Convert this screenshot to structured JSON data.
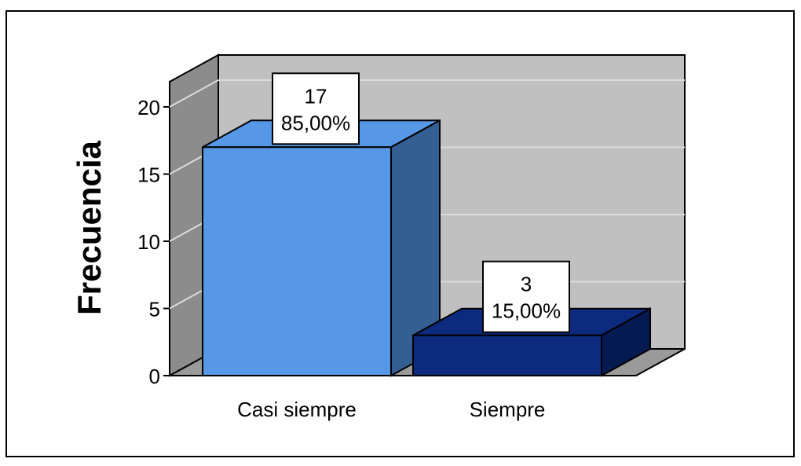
{
  "chart_data": {
    "type": "bar",
    "three_d": true,
    "ylabel": "Frecuencia",
    "xlabel": "",
    "ylim": [
      0,
      20
    ],
    "yticks": [
      0,
      5,
      10,
      15,
      20
    ],
    "grid": true,
    "categories": [
      "Casi siempre",
      "Siempre"
    ],
    "values": [
      17,
      3
    ],
    "percent_labels": [
      "85,00%",
      "15,00%"
    ],
    "count_labels": [
      "17",
      "3"
    ],
    "colors": {
      "bars": [
        "#5698E6",
        "#0C2A7E"
      ],
      "bar_sides": [
        "#345F92",
        "#051A51"
      ],
      "wall": "#C0C0C0",
      "floor": "#9A9A9A",
      "side_wall": "#8C8C8C"
    }
  }
}
